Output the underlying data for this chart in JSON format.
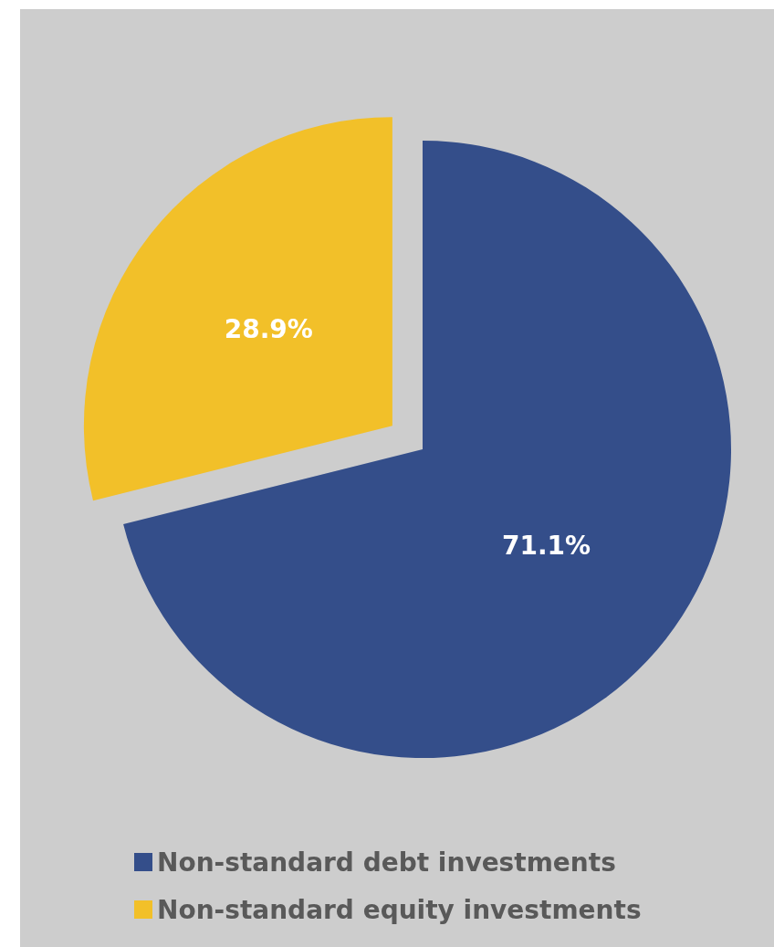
{
  "chart_data": {
    "type": "pie",
    "categories": [
      "Non-standard debt investments",
      "Non-standard equity investments"
    ],
    "values": [
      71.1,
      28.9
    ],
    "colors": [
      "#344e8a",
      "#f2c029"
    ],
    "value_labels": [
      "71.1%",
      "28.9%"
    ],
    "legend": "bottom left"
  }
}
